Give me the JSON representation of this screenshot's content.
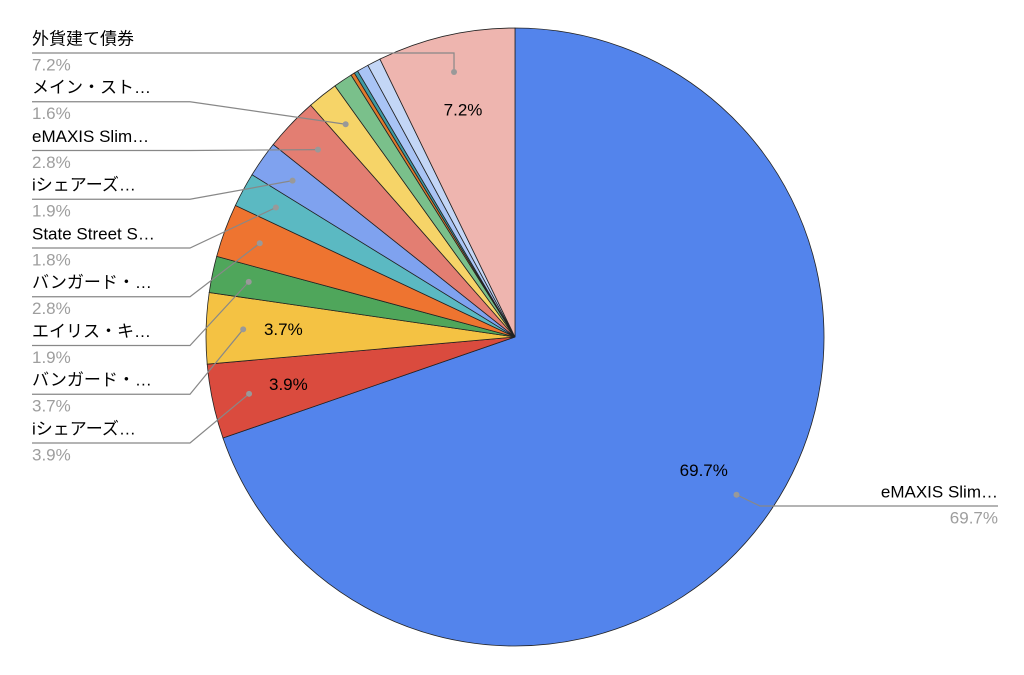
{
  "chart_data": {
    "type": "pie",
    "categories": [
      "eMAXIS Slim…",
      "iシェアーズ…",
      "バンガード・…",
      "エイリス・キ…",
      "バンガード・…",
      "State Street S…",
      "iシェアーズ…",
      "eMAXIS Slim…",
      "メイン・スト…",
      null,
      null,
      null,
      null,
      null,
      "外貨建て債券"
    ],
    "values": [
      69.7,
      3.9,
      3.7,
      1.9,
      2.8,
      1.8,
      1.9,
      2.8,
      1.6,
      1.0,
      0.2,
      0.2,
      0.6,
      0.7,
      7.2
    ],
    "value_labels": [
      "69.7%",
      "3.9%",
      "3.7%",
      "1.9%",
      "2.8%",
      "1.8%",
      "1.9%",
      "2.8%",
      "1.6%",
      null,
      null,
      null,
      null,
      null,
      "7.2%"
    ],
    "colors": [
      "#5384ec",
      "#da4b3e",
      "#f4c243",
      "#4fa65b",
      "#ee7430",
      "#5bb9c2",
      "#7fa2ef",
      "#e37e72",
      "#f6d468",
      "#7ac08b",
      "#e07a2c",
      "#3f9aa3",
      "#a9c4f5",
      "#c3d6f6",
      "#eeb5af"
    ]
  }
}
